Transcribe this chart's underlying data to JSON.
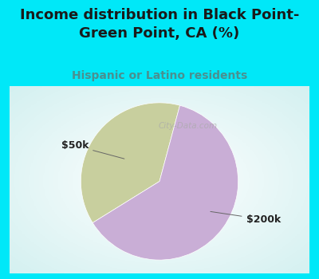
{
  "title": "Income distribution in Black Point-\nGreen Point, CA (%)",
  "subtitle": "Hispanic or Latino residents",
  "slices": [
    {
      "label": "$50k",
      "value": 38,
      "color": "#c8cf9e"
    },
    {
      "label": "$200k",
      "value": 62,
      "color": "#c9aed6"
    }
  ],
  "title_color": "#1a1a1a",
  "subtitle_color": "#4a9090",
  "title_bg_color": "#00e8f8",
  "chart_border_color": "#00e8f8",
  "watermark": "City-Data.com",
  "title_fontsize": 13,
  "subtitle_fontsize": 10,
  "startangle": 75,
  "label_fontsize": 9,
  "label_color": "#222222"
}
